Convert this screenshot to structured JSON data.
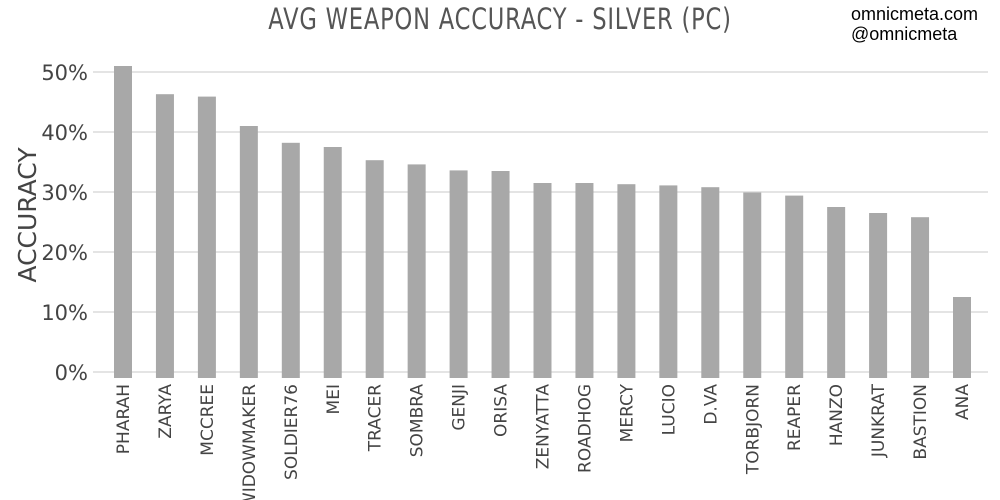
{
  "header": {
    "credit_site": "omnicmeta.com",
    "credit_handle": "@omnicmeta"
  },
  "chart_data": {
    "type": "bar",
    "title": "AVG WEAPON ACCURACY - SILVER (PC)",
    "xlabel": "",
    "ylabel": "ACCURACY",
    "ylim": [
      0,
      50
    ],
    "yticks": [
      0,
      10,
      20,
      30,
      40,
      50
    ],
    "ytick_labels": [
      "0%",
      "10%",
      "20%",
      "30%",
      "40%",
      "50%"
    ],
    "grid": true,
    "bar_color": "#a8a8a8",
    "grid_color": "#c8c8c8",
    "categories": [
      "PHARAH",
      "ZARYA",
      "MCCREE",
      "WIDOWMAKER",
      "SOLDIER76",
      "MEI",
      "TRACER",
      "SOMBRA",
      "GENJI",
      "ORISA",
      "ZENYATTA",
      "ROADHOG",
      "MERCY",
      "LUCIO",
      "D.VA",
      "TORBJORN",
      "REAPER",
      "HANZO",
      "JUNKRAT",
      "BASTION",
      "ANA"
    ],
    "values": [
      51.0,
      46.3,
      45.9,
      41.0,
      38.2,
      37.5,
      35.3,
      34.6,
      33.6,
      33.5,
      31.5,
      31.5,
      31.3,
      31.1,
      30.8,
      29.9,
      29.4,
      27.5,
      26.5,
      25.8,
      12.5
    ]
  }
}
